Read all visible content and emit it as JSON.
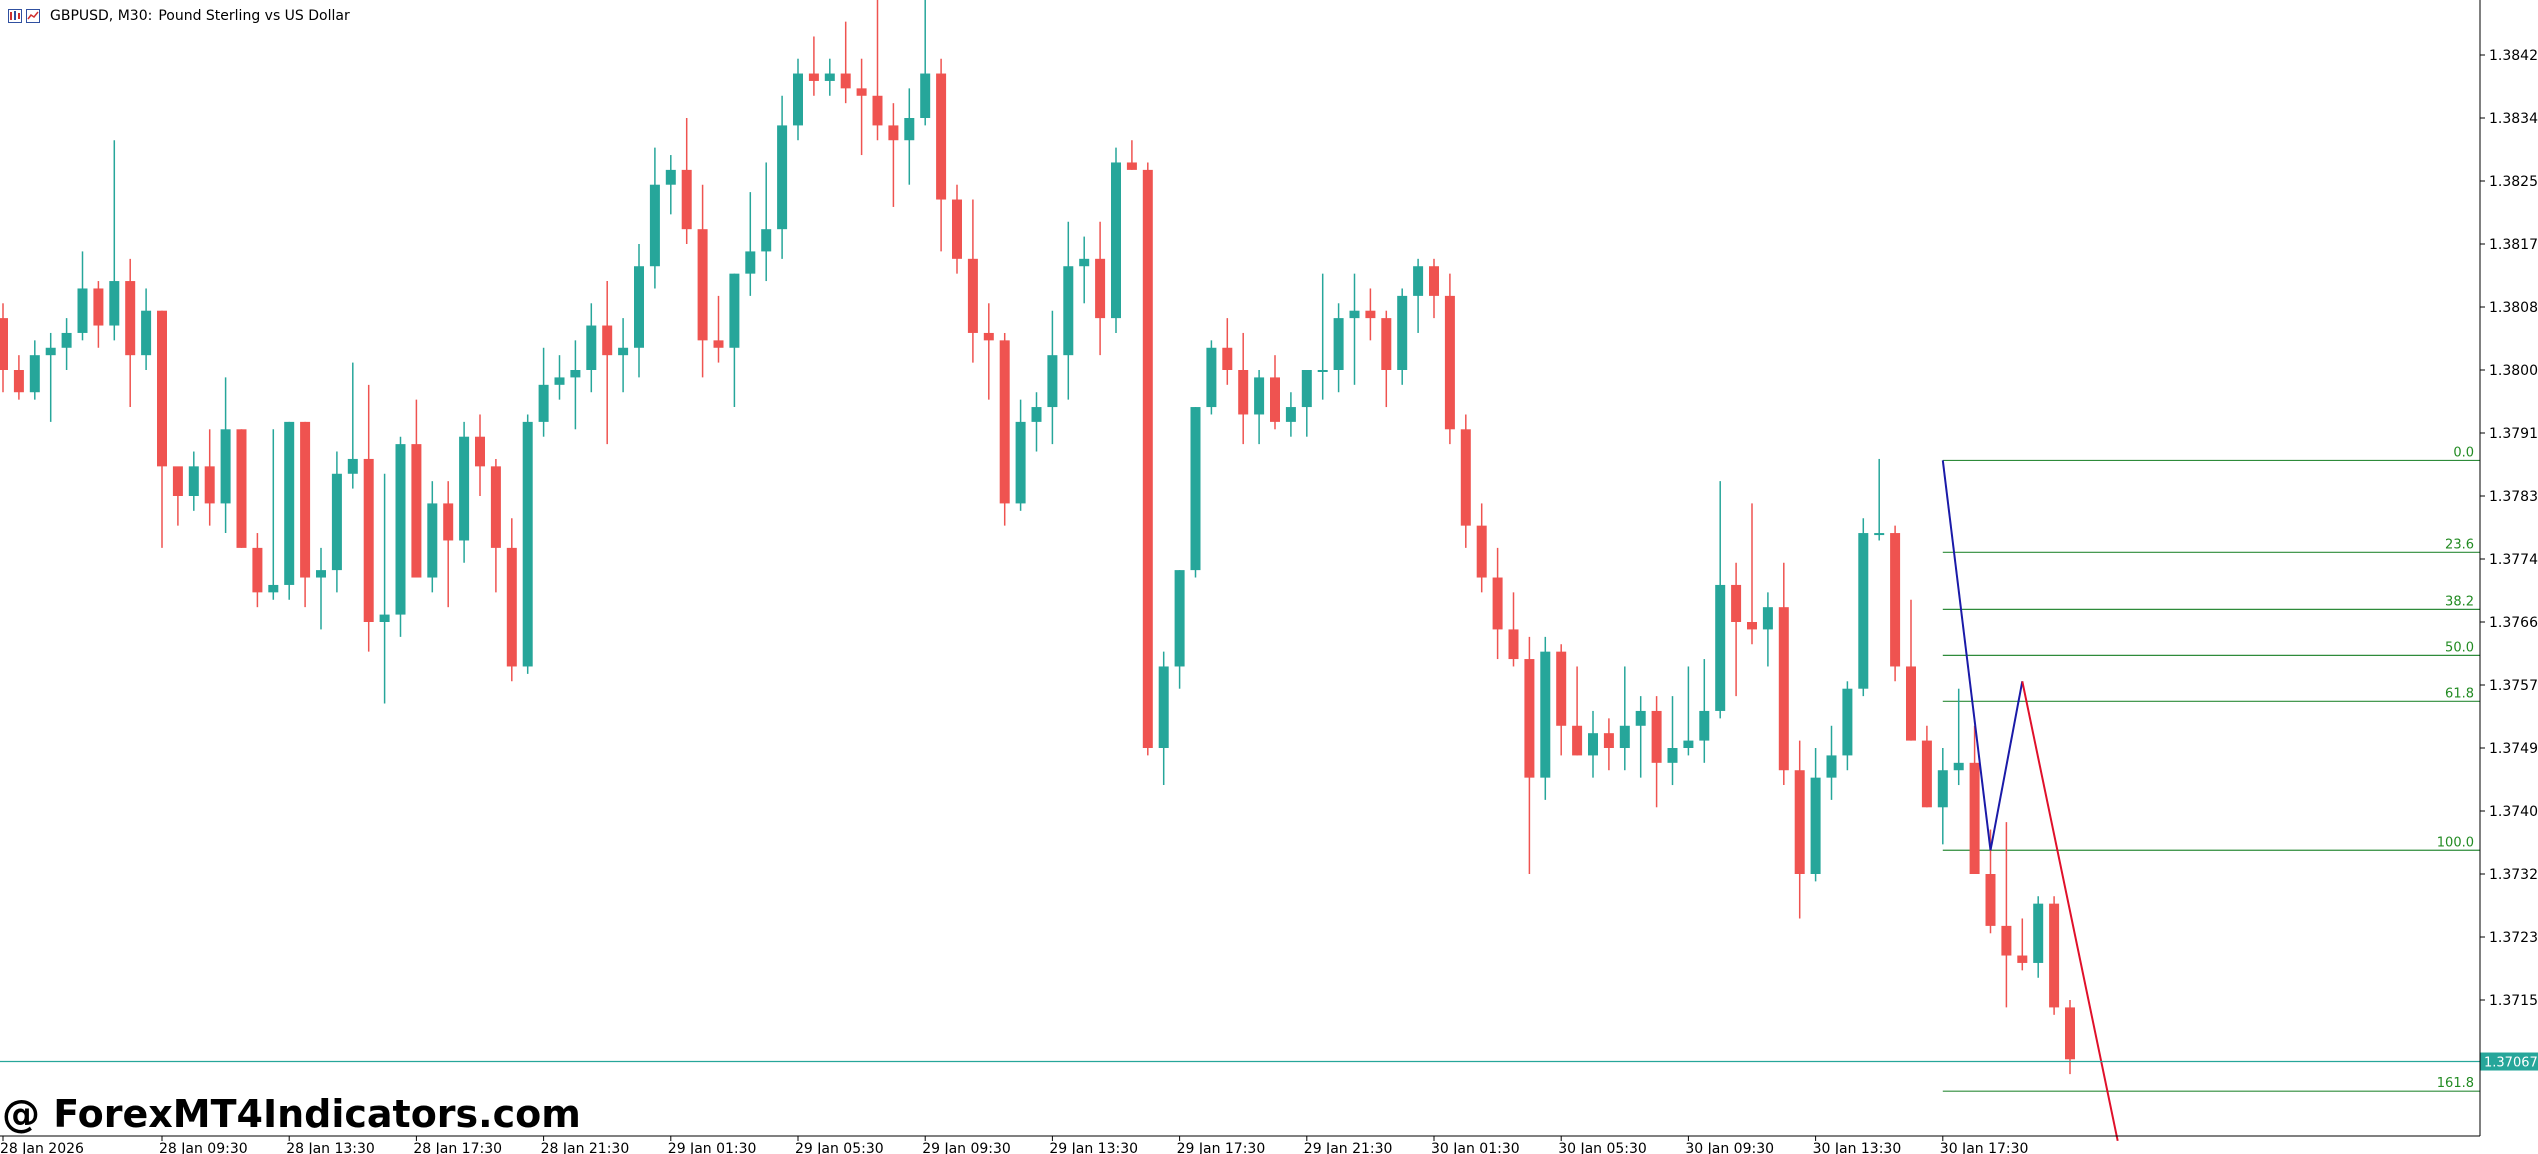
{
  "header": {
    "symbol_label": "GBPUSD, M30:",
    "description": "Pound Sterling vs US Dollar"
  },
  "watermark": "@ ForexMT4Indicators.com",
  "colors": {
    "bull": "#26a69a",
    "bear": "#ef5350",
    "fib_line": "#2e8b3a",
    "fib_text": "#228b22",
    "current_price": "#26a69a",
    "zigzag_up": "#1a1aa8",
    "zigzag_down": "#e0102a",
    "axis": "#000000"
  },
  "chart_data": {
    "type": "candlestick",
    "symbol": "GBPUSD",
    "timeframe": "M30",
    "y_axis": {
      "range": [
        1.3676,
        1.3855
      ],
      "ticks": [
        "1.38425",
        "1.38340",
        "1.38255",
        "1.38170",
        "1.38085",
        "1.38000",
        "1.37915",
        "1.37830",
        "1.37745",
        "1.37660",
        "1.37575",
        "1.37490",
        "1.37405",
        "1.37320",
        "1.37235",
        "1.37150"
      ]
    },
    "x_axis": {
      "ticks": [
        {
          "label": "28 Jan 2026",
          "index": 0
        },
        {
          "label": "28 Jan 09:30",
          "index": 10
        },
        {
          "label": "28 Jan 13:30",
          "index": 18
        },
        {
          "label": "28 Jan 17:30",
          "index": 26
        },
        {
          "label": "28 Jan 21:30",
          "index": 34
        },
        {
          "label": "29 Jan 01:30",
          "index": 42
        },
        {
          "label": "29 Jan 05:30",
          "index": 50
        },
        {
          "label": "29 Jan 09:30",
          "index": 58
        },
        {
          "label": "29 Jan 13:30",
          "index": 66
        },
        {
          "label": "29 Jan 17:30",
          "index": 74
        },
        {
          "label": "29 Jan 21:30",
          "index": 82
        },
        {
          "label": "30 Jan 01:30",
          "index": 90
        },
        {
          "label": "30 Jan 05:30",
          "index": 98
        },
        {
          "label": "30 Jan 09:30",
          "index": 106
        },
        {
          "label": "30 Jan 13:30",
          "index": 114
        },
        {
          "label": "30 Jan 17:30",
          "index": 122
        }
      ]
    },
    "candles": [
      [
        1.3807,
        1.3809,
        1.3797,
        1.38
      ],
      [
        1.38,
        1.3802,
        1.3796,
        1.3797
      ],
      [
        1.3797,
        1.3804,
        1.3796,
        1.3802
      ],
      [
        1.3802,
        1.3805,
        1.3793,
        1.3803
      ],
      [
        1.3803,
        1.3807,
        1.38,
        1.3805
      ],
      [
        1.3805,
        1.3816,
        1.3804,
        1.3811
      ],
      [
        1.3811,
        1.3812,
        1.3803,
        1.3806
      ],
      [
        1.3806,
        1.3831,
        1.3804,
        1.3812
      ],
      [
        1.3812,
        1.3815,
        1.3795,
        1.3802
      ],
      [
        1.3802,
        1.3811,
        1.38,
        1.3808
      ],
      [
        1.3808,
        1.3808,
        1.3776,
        1.3787
      ],
      [
        1.3787,
        1.3786,
        1.3779,
        1.3783
      ],
      [
        1.3783,
        1.3789,
        1.3781,
        1.3787
      ],
      [
        1.3787,
        1.3792,
        1.3779,
        1.3782
      ],
      [
        1.3782,
        1.3799,
        1.3778,
        1.3792
      ],
      [
        1.3792,
        1.3792,
        1.3776,
        1.3776
      ],
      [
        1.3776,
        1.3778,
        1.3768,
        1.377
      ],
      [
        1.377,
        1.3792,
        1.3769,
        1.3771
      ],
      [
        1.3771,
        1.3793,
        1.3769,
        1.3793
      ],
      [
        1.3793,
        1.3793,
        1.3768,
        1.3772
      ],
      [
        1.3772,
        1.3776,
        1.3765,
        1.3773
      ],
      [
        1.3773,
        1.3789,
        1.377,
        1.3786
      ],
      [
        1.3786,
        1.3801,
        1.3784,
        1.3788
      ],
      [
        1.3788,
        1.3798,
        1.3762,
        1.3766
      ],
      [
        1.3766,
        1.3786,
        1.3755,
        1.3767
      ],
      [
        1.3767,
        1.3791,
        1.3764,
        1.379
      ],
      [
        1.379,
        1.3796,
        1.3773,
        1.3772
      ],
      [
        1.3772,
        1.3785,
        1.377,
        1.3782
      ],
      [
        1.3782,
        1.3785,
        1.3768,
        1.3777
      ],
      [
        1.3777,
        1.3793,
        1.3774,
        1.3791
      ],
      [
        1.3791,
        1.3794,
        1.3783,
        1.3787
      ],
      [
        1.3787,
        1.3788,
        1.377,
        1.3776
      ],
      [
        1.3776,
        1.378,
        1.3758,
        1.376
      ],
      [
        1.376,
        1.3794,
        1.3759,
        1.3793
      ],
      [
        1.3793,
        1.3803,
        1.3791,
        1.3798
      ],
      [
        1.3798,
        1.3802,
        1.3796,
        1.3799
      ],
      [
        1.3799,
        1.3804,
        1.3792,
        1.38
      ],
      [
        1.38,
        1.3809,
        1.3797,
        1.3806
      ],
      [
        1.3806,
        1.3812,
        1.379,
        1.3802
      ],
      [
        1.3802,
        1.3807,
        1.3797,
        1.3803
      ],
      [
        1.3803,
        1.3817,
        1.3799,
        1.3814
      ],
      [
        1.3814,
        1.383,
        1.3811,
        1.3825
      ],
      [
        1.3825,
        1.3829,
        1.3821,
        1.3827
      ],
      [
        1.3827,
        1.3834,
        1.3817,
        1.3819
      ],
      [
        1.3819,
        1.3825,
        1.3799,
        1.3804
      ],
      [
        1.3804,
        1.381,
        1.3801,
        1.3803
      ],
      [
        1.3803,
        1.3813,
        1.3795,
        1.3813
      ],
      [
        1.3813,
        1.3824,
        1.381,
        1.3816
      ],
      [
        1.3816,
        1.3828,
        1.3812,
        1.3819
      ],
      [
        1.3819,
        1.3837,
        1.3815,
        1.3833
      ],
      [
        1.3833,
        1.3842,
        1.3831,
        1.384
      ],
      [
        1.384,
        1.3845,
        1.3837,
        1.3839
      ],
      [
        1.3839,
        1.3842,
        1.3837,
        1.384
      ],
      [
        1.384,
        1.3847,
        1.3836,
        1.3838
      ],
      [
        1.3838,
        1.3842,
        1.3829,
        1.3837
      ],
      [
        1.3837,
        1.3854,
        1.3831,
        1.3833
      ],
      [
        1.3833,
        1.3836,
        1.3822,
        1.3831
      ],
      [
        1.3831,
        1.3838,
        1.3825,
        1.3834
      ],
      [
        1.3834,
        1.3853,
        1.3833,
        1.384
      ],
      [
        1.384,
        1.3842,
        1.3816,
        1.3823
      ],
      [
        1.3823,
        1.3825,
        1.3813,
        1.3815
      ],
      [
        1.3815,
        1.3823,
        1.3801,
        1.3805
      ],
      [
        1.3805,
        1.3809,
        1.3796,
        1.3804
      ],
      [
        1.3804,
        1.3805,
        1.3779,
        1.3782
      ],
      [
        1.3782,
        1.3796,
        1.3781,
        1.3793
      ],
      [
        1.3793,
        1.3797,
        1.3789,
        1.3795
      ],
      [
        1.3795,
        1.3808,
        1.379,
        1.3802
      ],
      [
        1.3802,
        1.382,
        1.3796,
        1.3814
      ],
      [
        1.3814,
        1.3818,
        1.3809,
        1.3815
      ],
      [
        1.3815,
        1.382,
        1.3802,
        1.3807
      ],
      [
        1.3807,
        1.383,
        1.3805,
        1.3828
      ],
      [
        1.3828,
        1.3831,
        1.3827,
        1.3827
      ],
      [
        1.3827,
        1.3828,
        1.3748,
        1.3749
      ],
      [
        1.3749,
        1.3762,
        1.3744,
        1.376
      ],
      [
        1.376,
        1.3773,
        1.3757,
        1.3773
      ],
      [
        1.3773,
        1.3795,
        1.3772,
        1.3795
      ],
      [
        1.3795,
        1.3804,
        1.3794,
        1.3803
      ],
      [
        1.3803,
        1.3807,
        1.3798,
        1.38
      ],
      [
        1.38,
        1.3805,
        1.379,
        1.3794
      ],
      [
        1.3794,
        1.38,
        1.379,
        1.3799
      ],
      [
        1.3799,
        1.3802,
        1.3792,
        1.3793
      ],
      [
        1.3793,
        1.3797,
        1.3791,
        1.3795
      ],
      [
        1.3795,
        1.38,
        1.3791,
        1.38
      ],
      [
        1.38,
        1.3813,
        1.3796,
        1.38
      ],
      [
        1.38,
        1.3809,
        1.3797,
        1.3807
      ],
      [
        1.3807,
        1.3813,
        1.3798,
        1.3808
      ],
      [
        1.3808,
        1.3811,
        1.3804,
        1.3807
      ],
      [
        1.3807,
        1.3808,
        1.3795,
        1.38
      ],
      [
        1.38,
        1.3811,
        1.3798,
        1.381
      ],
      [
        1.381,
        1.3815,
        1.3805,
        1.3814
      ],
      [
        1.3814,
        1.3815,
        1.3807,
        1.381
      ],
      [
        1.381,
        1.3813,
        1.379,
        1.3792
      ],
      [
        1.3792,
        1.3794,
        1.3776,
        1.3779
      ],
      [
        1.3779,
        1.3782,
        1.377,
        1.3772
      ],
      [
        1.3772,
        1.3776,
        1.3761,
        1.3765
      ],
      [
        1.3765,
        1.377,
        1.376,
        1.3761
      ],
      [
        1.3761,
        1.3764,
        1.3732,
        1.3745
      ],
      [
        1.3745,
        1.3764,
        1.3742,
        1.3762
      ],
      [
        1.3762,
        1.3763,
        1.3748,
        1.3752
      ],
      [
        1.3752,
        1.376,
        1.3748,
        1.3748
      ],
      [
        1.3748,
        1.3754,
        1.3745,
        1.3751
      ],
      [
        1.3751,
        1.3753,
        1.3746,
        1.3749
      ],
      [
        1.3749,
        1.376,
        1.3746,
        1.3752
      ],
      [
        1.3752,
        1.3756,
        1.3745,
        1.3754
      ],
      [
        1.3754,
        1.3756,
        1.3741,
        1.3747
      ],
      [
        1.3747,
        1.3756,
        1.3744,
        1.3749
      ],
      [
        1.3749,
        1.376,
        1.3748,
        1.375
      ],
      [
        1.375,
        1.3761,
        1.3747,
        1.3754
      ],
      [
        1.3754,
        1.3785,
        1.3753,
        1.3771
      ],
      [
        1.3771,
        1.3774,
        1.3756,
        1.3766
      ],
      [
        1.3766,
        1.3782,
        1.3763,
        1.3765
      ],
      [
        1.3765,
        1.377,
        1.376,
        1.3768
      ],
      [
        1.3768,
        1.3774,
        1.3744,
        1.3746
      ],
      [
        1.3746,
        1.375,
        1.3726,
        1.3732
      ],
      [
        1.3732,
        1.3749,
        1.3731,
        1.3745
      ],
      [
        1.3745,
        1.3752,
        1.3742,
        1.3748
      ],
      [
        1.3748,
        1.3758,
        1.3746,
        1.3757
      ],
      [
        1.3757,
        1.378,
        1.3756,
        1.3778
      ],
      [
        1.3778,
        1.3788,
        1.3777,
        1.3778
      ],
      [
        1.3778,
        1.3779,
        1.3758,
        1.376
      ],
      [
        1.376,
        1.3769,
        1.375,
        1.375
      ],
      [
        1.375,
        1.3752,
        1.3741,
        1.3741
      ],
      [
        1.3741,
        1.3749,
        1.3736,
        1.3746
      ],
      [
        1.3746,
        1.3757,
        1.3744,
        1.3747
      ],
      [
        1.3747,
        1.3752,
        1.3732,
        1.3732
      ],
      [
        1.3732,
        1.3738,
        1.3724,
        1.3725
      ],
      [
        1.3725,
        1.3739,
        1.3714,
        1.3721
      ],
      [
        1.3721,
        1.3726,
        1.3719,
        1.372
      ],
      [
        1.372,
        1.3729,
        1.3718,
        1.3728
      ],
      [
        1.3728,
        1.3729,
        1.3713,
        1.3714
      ],
      [
        1.3714,
        1.3715,
        1.3705,
        1.3707
      ]
    ],
    "current_price": {
      "value": 1.37067,
      "label": "1.37067"
    },
    "fibonacci": {
      "start_index": 122,
      "levels": [
        {
          "label": "0.0",
          "price": 1.37878
        },
        {
          "label": "23.6",
          "price": 1.37754
        },
        {
          "label": "38.2",
          "price": 1.37677
        },
        {
          "label": "50.0",
          "price": 1.37615
        },
        {
          "label": "61.8",
          "price": 1.37553
        },
        {
          "label": "100.0",
          "price": 1.37352
        },
        {
          "label": "161.8",
          "price": 1.37027
        }
      ]
    },
    "zigzag": [
      {
        "index": 122,
        "price": 1.37878,
        "color_key": "zigzag_up"
      },
      {
        "index": 125,
        "price": 1.37352,
        "color_key": "zigzag_up"
      },
      {
        "index": 127,
        "price": 1.3758,
        "color_key": "zigzag_down"
      },
      {
        "index": 133,
        "price": 1.3696,
        "color_key": "zigzag_down"
      }
    ]
  }
}
